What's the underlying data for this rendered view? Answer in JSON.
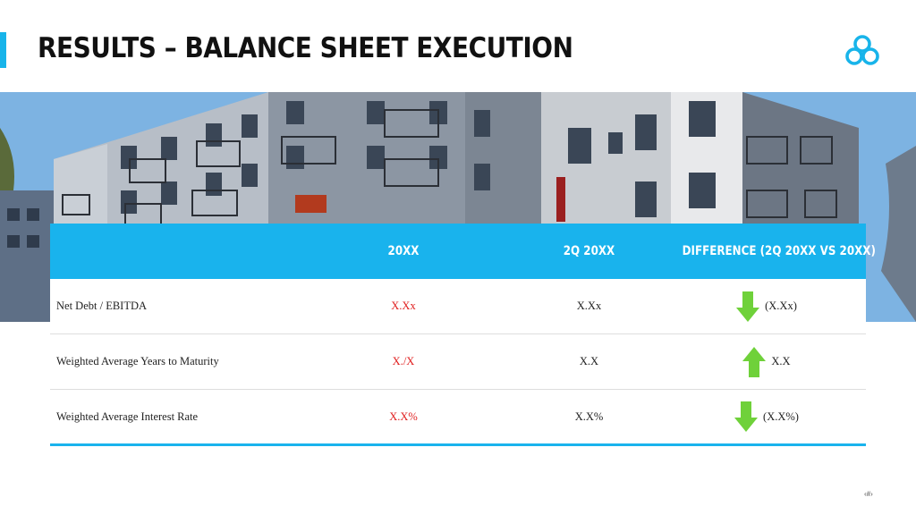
{
  "header": {
    "title": "RESULTS – BALANCE SHEET EXECUTION"
  },
  "logo": {
    "icon": "cloud-rings-logo-icon",
    "color": "#18b4ea"
  },
  "photo": {
    "icon": "apartment-building-photo"
  },
  "table": {
    "columns": [
      "",
      "20XX",
      "2Q 20XX",
      "DIFFERENCE (2Q 20XX VS 20XX)"
    ],
    "rows": [
      {
        "label": "Net Debt /  EBITDA",
        "value_20xx": "X.Xx",
        "value_2q": "X.Xx",
        "direction": "down",
        "difference": "(X.Xx)"
      },
      {
        "label": "Weighted Average Years to Maturity",
        "value_20xx": "X./X",
        "value_2q": "X.X",
        "direction": "up",
        "difference": "X.X"
      },
      {
        "label": "Weighted Average Interest Rate",
        "value_20xx": "X.X%",
        "value_2q": "X.X%",
        "direction": "down",
        "difference": "(X.X%)"
      }
    ]
  },
  "footer": {
    "page_number": "‹#›"
  },
  "colors": {
    "accent": "#19b3ed",
    "red_value": "#e02020",
    "arrow_green": "#6fd13a",
    "title": "#111111"
  }
}
